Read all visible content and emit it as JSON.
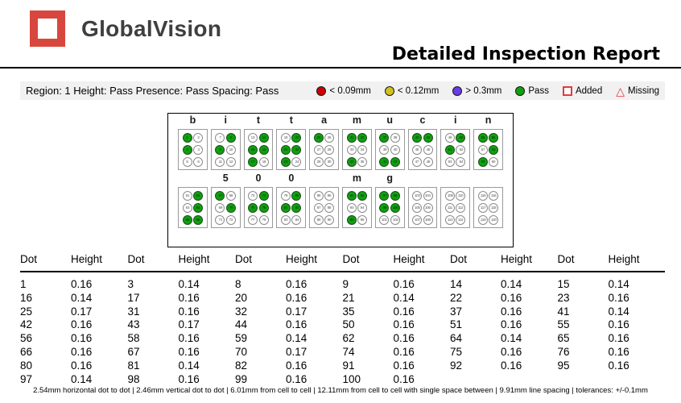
{
  "header": {
    "logo_text": "GlobalVision",
    "logo_color": "#d8473d",
    "title": "Detailed Inspection Report"
  },
  "region_bar": {
    "summary": "Region: 1 Height: Pass Presence: Pass Spacing: Pass",
    "legend": [
      {
        "icon": "red-circle-icon",
        "shape": "circle",
        "color": "#cc0000",
        "label": "< 0.09mm"
      },
      {
        "icon": "yellow-circle-icon",
        "shape": "circle",
        "color": "#d2c11c",
        "label": "< 0.12mm"
      },
      {
        "icon": "purple-circle-icon",
        "shape": "circle",
        "color": "#6a3be8",
        "label": "> 0.3mm"
      },
      {
        "icon": "green-circle-icon",
        "shape": "circle",
        "color": "#0da10d",
        "label": "Pass"
      },
      {
        "icon": "added-square-icon",
        "shape": "square",
        "color": "#e23b3b",
        "label": "Added"
      },
      {
        "icon": "missing-triangle-icon",
        "shape": "triangle",
        "color": "#e23b3b",
        "label": "Missing"
      }
    ]
  },
  "diagram": {
    "pass_color": "#0da10d",
    "text": "bittamucin 500 mg",
    "rows": [
      {
        "cells": [
          {
            "label": "b",
            "start": 1,
            "raised": [
              1,
              3
            ]
          },
          {
            "label": "i",
            "start": 7,
            "raised": [
              8,
              9
            ]
          },
          {
            "label": "t",
            "start": 13,
            "raised": [
              14,
              15,
              16,
              17
            ]
          },
          {
            "label": "t",
            "start": 19,
            "raised": [
              20,
              21,
              22,
              23
            ]
          },
          {
            "label": "a",
            "start": 25,
            "raised": [
              25
            ]
          },
          {
            "label": "m",
            "start": 31,
            "raised": [
              31,
              32,
              35
            ]
          },
          {
            "label": "u",
            "start": 37,
            "raised": [
              37,
              41,
              42
            ]
          },
          {
            "label": "c",
            "start": 43,
            "raised": [
              43,
              44
            ]
          },
          {
            "label": "i",
            "start": 49,
            "raised": [
              50,
              51
            ]
          },
          {
            "label": "n",
            "start": 55,
            "raised": [
              55,
              56,
              58,
              59
            ]
          }
        ]
      },
      {
        "cells": [
          {
            "label": "",
            "start": 61,
            "raised": [
              62,
              64,
              65,
              66
            ]
          },
          {
            "label": "5",
            "start": 67,
            "raised": [
              67,
              70
            ]
          },
          {
            "label": "0",
            "start": 73,
            "raised": [
              74,
              75,
              76
            ]
          },
          {
            "label": "0",
            "start": 79,
            "raised": [
              80,
              81,
              82
            ]
          },
          {
            "label": "",
            "start": 85,
            "raised": []
          },
          {
            "label": "m",
            "start": 91,
            "raised": [
              91,
              92,
              95
            ]
          },
          {
            "label": "g",
            "start": 97,
            "raised": [
              97,
              98,
              99,
              100
            ]
          },
          {
            "label": "",
            "start": 103,
            "raised": []
          },
          {
            "label": "",
            "start": 109,
            "raised": []
          },
          {
            "label": "",
            "start": 115,
            "raised": []
          }
        ]
      }
    ]
  },
  "table": {
    "headers": [
      "Dot",
      "Height",
      "Dot",
      "Height",
      "Dot",
      "Height",
      "Dot",
      "Height",
      "Dot",
      "Height",
      "Dot",
      "Height"
    ],
    "rows": [
      [
        "1",
        "0.16",
        "3",
        "0.14",
        "8",
        "0.16",
        "9",
        "0.16",
        "14",
        "0.14",
        "15",
        "0.14"
      ],
      [
        "16",
        "0.14",
        "17",
        "0.16",
        "20",
        "0.16",
        "21",
        "0.14",
        "22",
        "0.16",
        "23",
        "0.16"
      ],
      [
        "25",
        "0.17",
        "31",
        "0.16",
        "32",
        "0.17",
        "35",
        "0.16",
        "37",
        "0.16",
        "41",
        "0.14"
      ],
      [
        "42",
        "0.16",
        "43",
        "0.17",
        "44",
        "0.16",
        "50",
        "0.16",
        "51",
        "0.16",
        "55",
        "0.16"
      ],
      [
        "56",
        "0.16",
        "58",
        "0.16",
        "59",
        "0.14",
        "62",
        "0.16",
        "64",
        "0.14",
        "65",
        "0.16"
      ],
      [
        "66",
        "0.16",
        "67",
        "0.16",
        "70",
        "0.17",
        "74",
        "0.16",
        "75",
        "0.16",
        "76",
        "0.16"
      ],
      [
        "80",
        "0.16",
        "81",
        "0.14",
        "82",
        "0.16",
        "91",
        "0.16",
        "92",
        "0.16",
        "95",
        "0.16"
      ],
      [
        "97",
        "0.14",
        "98",
        "0.16",
        "99",
        "0.16",
        "100",
        "0.16",
        "",
        ""
      ]
    ]
  },
  "footer": {
    "metrics": "2.54mm horizontal dot to dot  |  2.46mm vertical dot to dot  |  6.01mm from cell to cell  |  12.11mm from cell to cell with single space between  |  9.91mm line spacing  |  tolerances: +/-0.1mm"
  }
}
